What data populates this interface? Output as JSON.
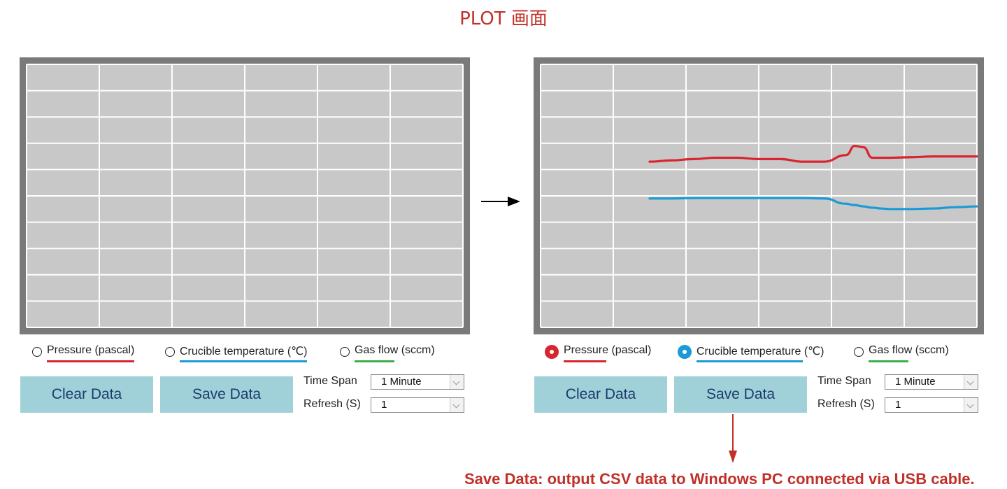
{
  "title": "PLOT 画面",
  "legend": [
    {
      "label": "Pressure (pascal)",
      "color": "#d8252f"
    },
    {
      "label": "Crucible temperature (℃)",
      "color": "#1a9ad6"
    },
    {
      "label": "Gas flow (sccm)",
      "color": "#3bb04a"
    }
  ],
  "panels": [
    {
      "id": "before",
      "checked": [
        false,
        false,
        false
      ],
      "buttons": {
        "clear": "Clear Data",
        "save": "Save Data"
      },
      "time_span": {
        "label": "Time Span",
        "value": "1 Minute"
      },
      "refresh": {
        "label": "Refresh (S)",
        "value": "1"
      }
    },
    {
      "id": "after",
      "checked": [
        true,
        true,
        false
      ],
      "buttons": {
        "clear": "Clear Data",
        "save": "Save Data"
      },
      "time_span": {
        "label": "Time Span",
        "value": "1 Minute"
      },
      "refresh": {
        "label": "Refresh (S)",
        "value": "1"
      }
    }
  ],
  "plot_style": {
    "frame": "#7a7a7a",
    "background": "#c8c8c8",
    "grid": "#ffffff",
    "columns": 6,
    "rows": 10
  },
  "chart_data": {
    "type": "line",
    "x": [
      0.25,
      0.3,
      0.35,
      0.4,
      0.45,
      0.5,
      0.55,
      0.6,
      0.65,
      0.7,
      0.72,
      0.74,
      0.76,
      0.78,
      0.8,
      0.85,
      0.9,
      0.95,
      1.0
    ],
    "series": [
      {
        "name": "Pressure (pascal)",
        "color": "#d8252f",
        "values": [
          0.37,
          0.365,
          0.36,
          0.355,
          0.355,
          0.36,
          0.36,
          0.37,
          0.37,
          0.345,
          0.31,
          0.315,
          0.355,
          0.355,
          0.355,
          0.353,
          0.35,
          0.35,
          0.35
        ]
      },
      {
        "name": "Crucible temperature (℃)",
        "color": "#1a9ad6",
        "values": [
          0.51,
          0.51,
          0.508,
          0.508,
          0.508,
          0.508,
          0.508,
          0.508,
          0.51,
          0.53,
          0.535,
          0.54,
          0.545,
          0.548,
          0.55,
          0.55,
          0.548,
          0.543,
          0.54
        ]
      }
    ]
  },
  "note": "Save Data: output CSV data to Windows PC connected via USB cable."
}
